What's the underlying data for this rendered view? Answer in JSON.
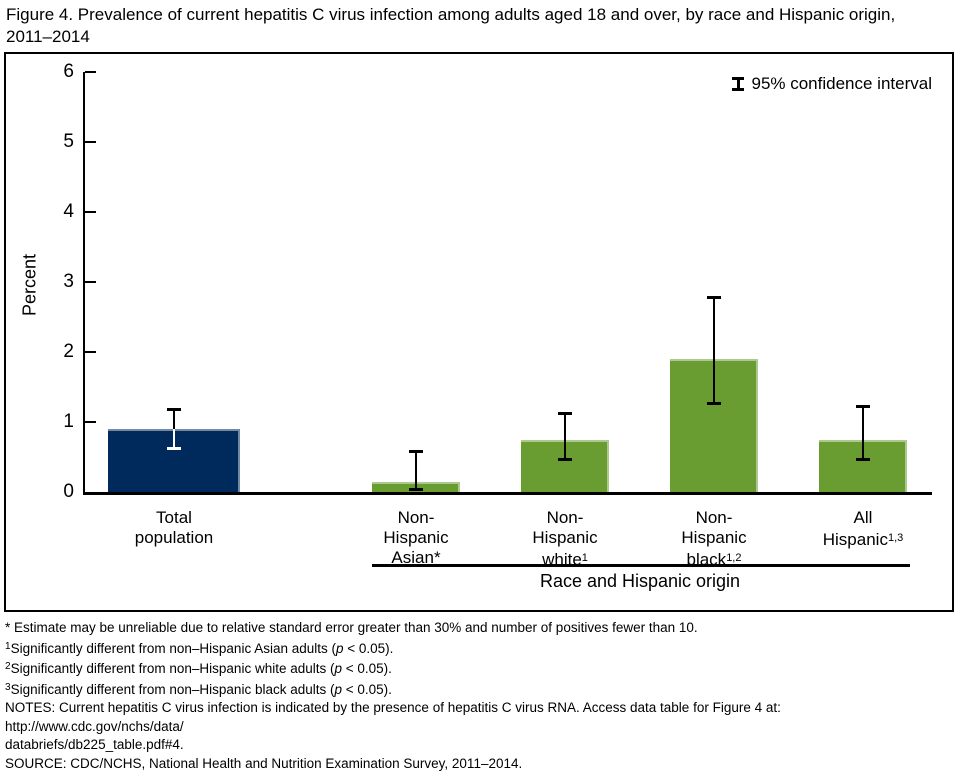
{
  "title": {
    "line1": "Figure 4. Prevalence of current hepatitis C virus infection among adults aged 18 and over, by race and Hispanic origin,",
    "line2": "2011–2014"
  },
  "chart_data": {
    "type": "bar",
    "ylabel": "Percent",
    "ylim": [
      0,
      6
    ],
    "yticks": [
      0,
      1,
      2,
      3,
      4,
      5,
      6
    ],
    "grid": "off",
    "legend_label": "95% confidence interval",
    "legend_position": "top-right",
    "group_axis_label": "Race and Hispanic origin",
    "colors": {
      "navy": "#002a5c",
      "green": "#6a9d31"
    },
    "bars": [
      {
        "name": "Total population",
        "label_lines": [
          {
            "t": "Total"
          },
          {
            "t": "population"
          }
        ],
        "value": 0.9,
        "ci": [
          0.6,
          1.2
        ],
        "color": "#002a5c",
        "error_bar_inside_bar_color": "#ffffff",
        "in_group": false
      },
      {
        "name": "Non-Hispanic Asian",
        "label_lines": [
          {
            "t": "Non-"
          },
          {
            "t": "Hispanic"
          },
          {
            "t": "Asian*"
          }
        ],
        "value": 0.15,
        "ci": [
          0.02,
          0.6
        ],
        "color": "#6a9d31",
        "in_group": true
      },
      {
        "name": "Non-Hispanic white",
        "label_lines": [
          {
            "t": "Non-"
          },
          {
            "t": "Hispanic"
          },
          {
            "t": "white",
            "sup": "1"
          }
        ],
        "value": 0.75,
        "ci": [
          0.45,
          1.15
        ],
        "color": "#6a9d31",
        "in_group": true
      },
      {
        "name": "Non-Hispanic black",
        "label_lines": [
          {
            "t": "Non-"
          },
          {
            "t": "Hispanic"
          },
          {
            "t": "black",
            "sup": "1,2"
          }
        ],
        "value": 1.9,
        "ci": [
          1.25,
          2.8
        ],
        "color": "#6a9d31",
        "in_group": true
      },
      {
        "name": "All Hispanic",
        "label_lines": [
          {
            "t": "All"
          },
          {
            "t": "Hispanic",
            "sup": "1,3"
          }
        ],
        "value": 0.75,
        "ci": [
          0.45,
          1.25
        ],
        "color": "#6a9d31",
        "in_group": true
      }
    ]
  },
  "footnotes": [
    {
      "segments": [
        {
          "t": "* Estimate may be unreliable due to relative standard error greater than 30% and number of positives fewer than 10."
        }
      ]
    },
    {
      "segments": [
        {
          "sup": "1"
        },
        {
          "t": "Significantly different from non–Hispanic Asian adults ("
        },
        {
          "t": "p",
          "italic": true
        },
        {
          "t": " < 0.05)."
        }
      ]
    },
    {
      "segments": [
        {
          "sup": "2"
        },
        {
          "t": "Significantly different from non–Hispanic white adults ("
        },
        {
          "t": "p",
          "italic": true
        },
        {
          "t": " < 0.05)."
        }
      ]
    },
    {
      "segments": [
        {
          "sup": "3"
        },
        {
          "t": "Significantly different from non–Hispanic black adults ("
        },
        {
          "t": "p",
          "italic": true
        },
        {
          "t": " < 0.05)."
        }
      ]
    },
    {
      "segments": [
        {
          "t": "NOTES: Current hepatitis C virus infection is indicated by the presence of hepatitis C virus RNA. Access data table for Figure 4 at: http://www.cdc.gov/nchs/data/"
        }
      ]
    },
    {
      "segments": [
        {
          "t": "databriefs/db225_table.pdf#4."
        }
      ]
    },
    {
      "segments": [
        {
          "t": "SOURCE: CDC/NCHS, National Health and Nutrition Examination Survey, 2011–2014."
        }
      ]
    }
  ]
}
